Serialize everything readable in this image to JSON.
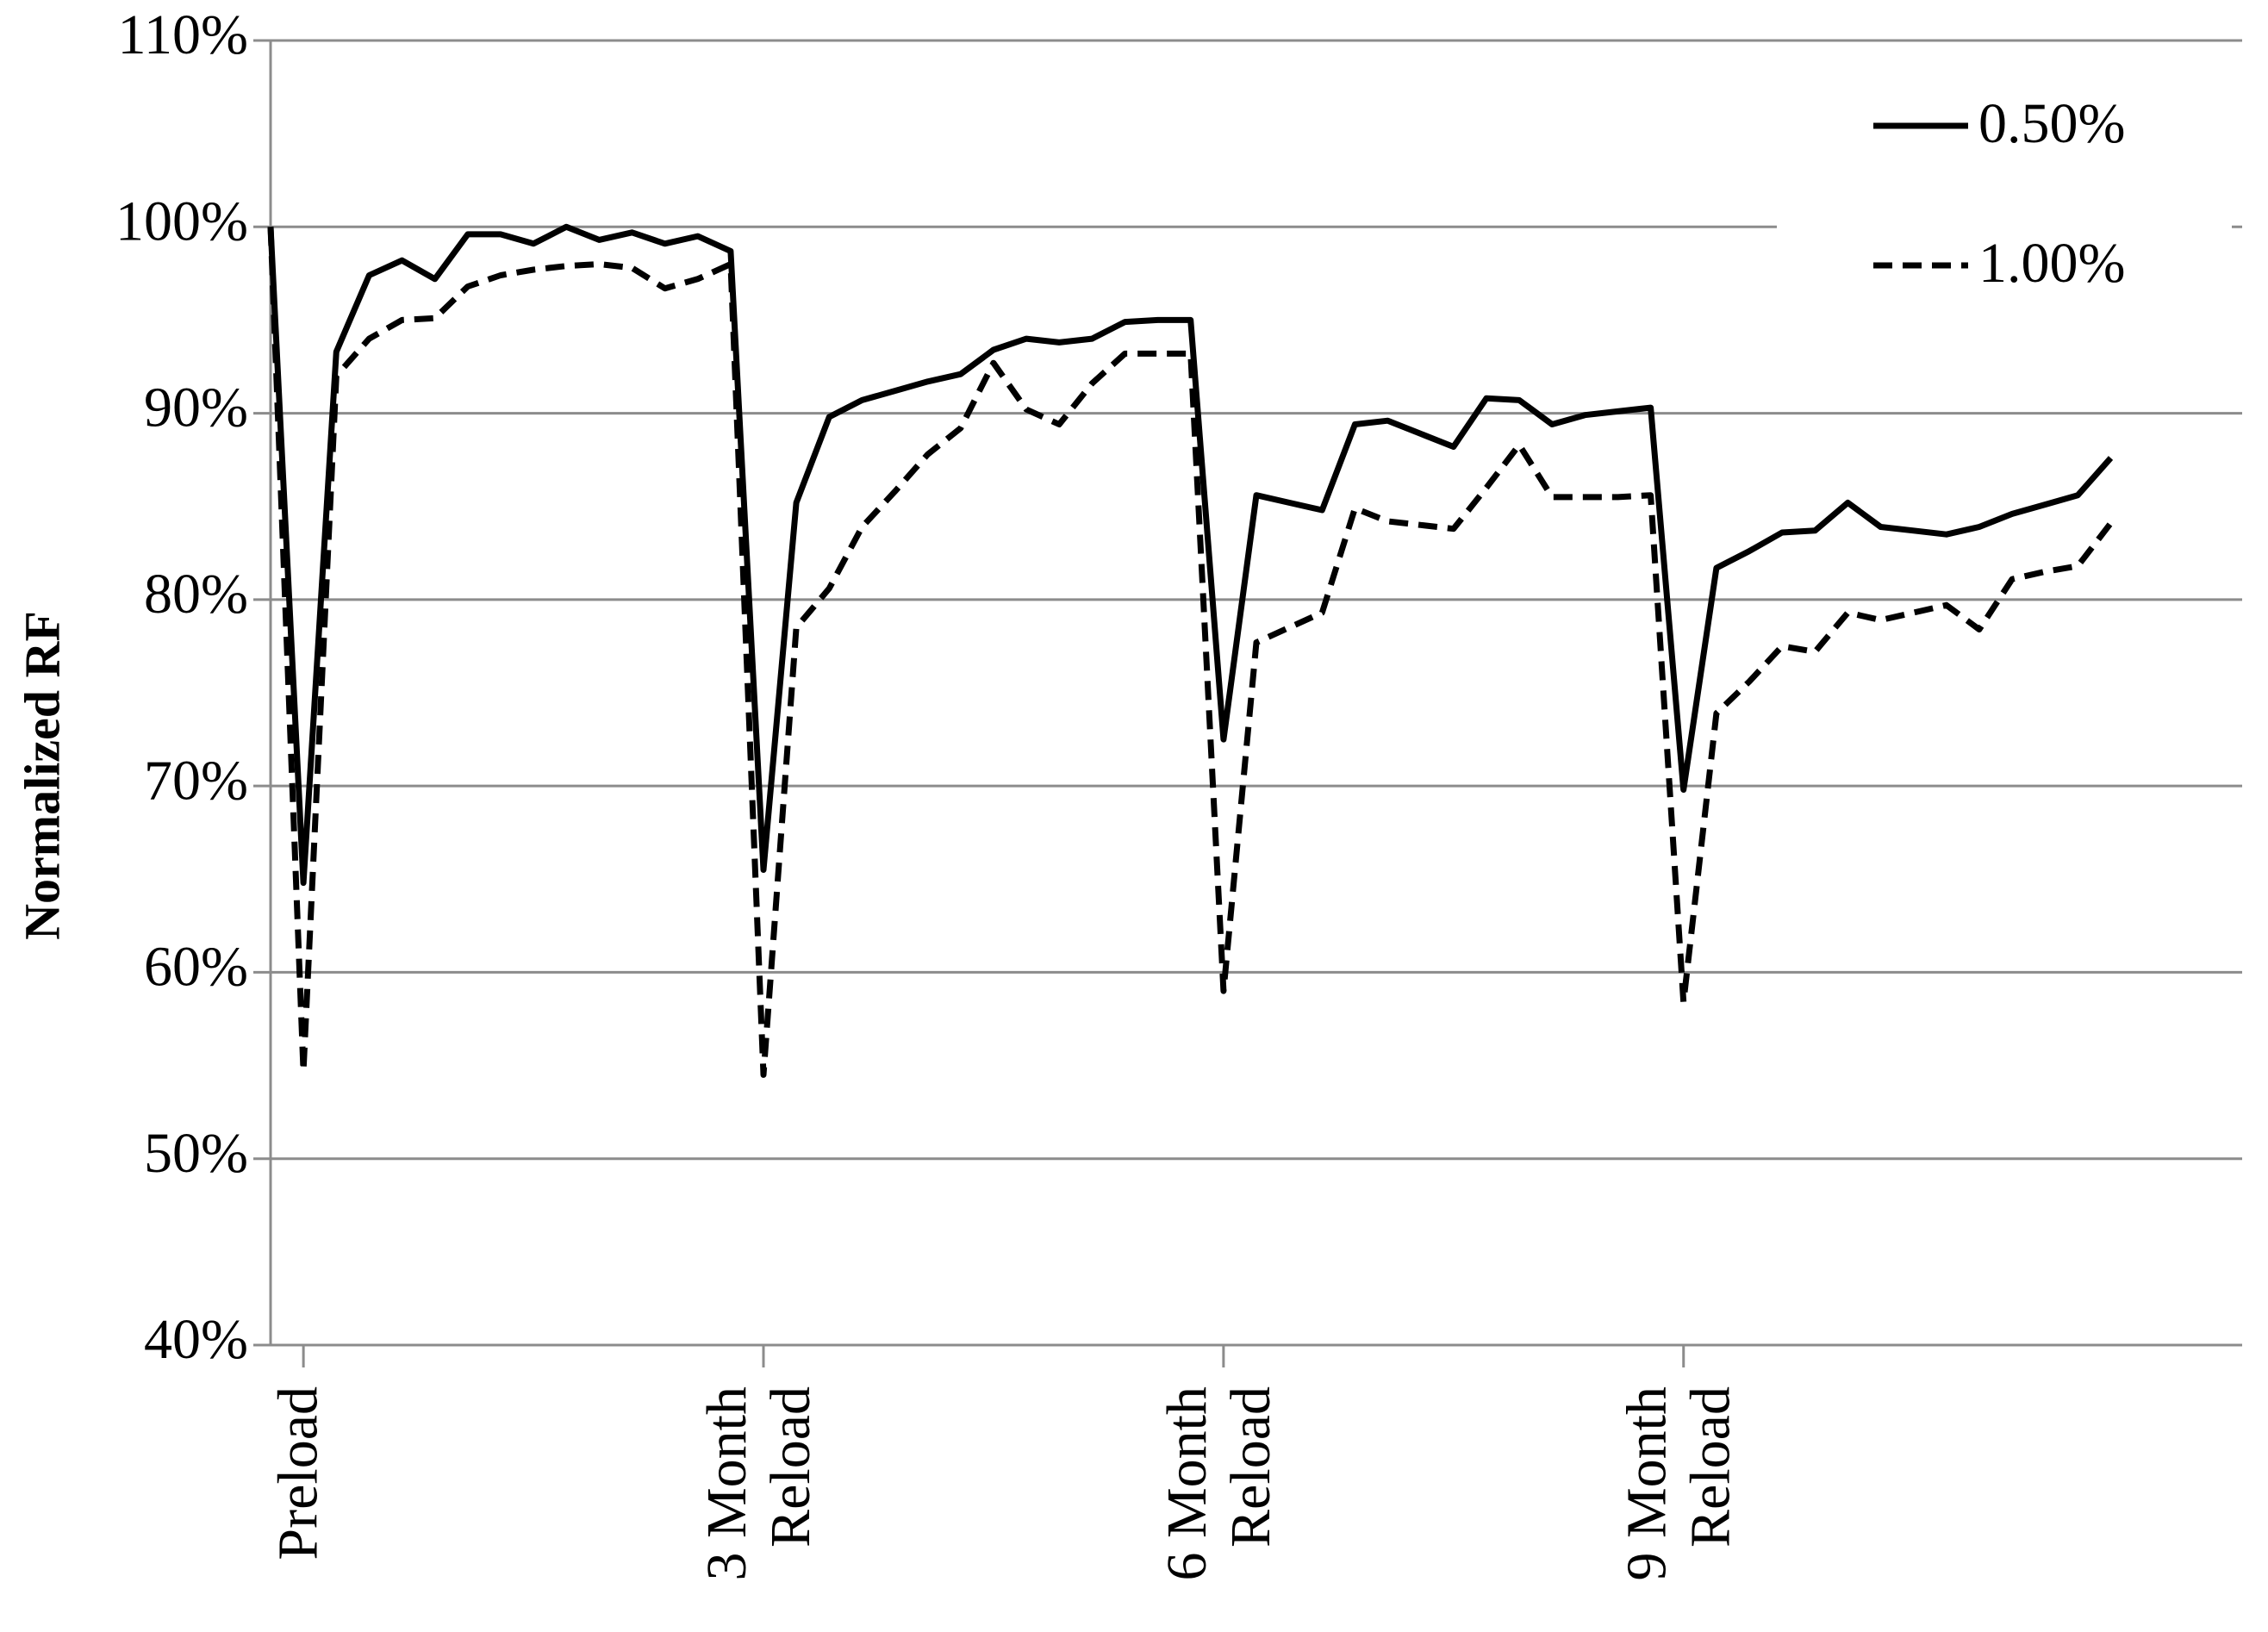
{
  "chart_data": {
    "type": "line",
    "y_label": "Normalized RF",
    "categories": [
      null,
      "Preload",
      null,
      null,
      null,
      null,
      null,
      null,
      null,
      null,
      null,
      null,
      null,
      null,
      null,
      "3 Month Reload",
      null,
      null,
      null,
      null,
      null,
      null,
      null,
      null,
      null,
      null,
      null,
      null,
      null,
      "6 Month Reload",
      null,
      null,
      null,
      null,
      null,
      null,
      null,
      null,
      null,
      null,
      null,
      null,
      null,
      "9 Month Reload",
      null,
      null,
      null,
      null,
      null,
      null,
      null,
      null,
      null,
      null,
      null,
      null,
      null,
      null,
      null,
      null,
      null
    ],
    "series": [
      {
        "name": "0.50%",
        "color": "#000000",
        "dash": false,
        "values": [
          100,
          64.8,
          93.3,
          97.4,
          98.2,
          97.2,
          99.6,
          99.6,
          99.1,
          100,
          99.3,
          99.7,
          99.1,
          99.5,
          98.7,
          65.5,
          85.2,
          89.8,
          90.7,
          91.2,
          91.7,
          92.1,
          93.4,
          94.0,
          93.8,
          94.0,
          94.9,
          95.0,
          95.0,
          72.5,
          85.6,
          85.2,
          84.8,
          89.4,
          89.6,
          88.9,
          88.2,
          90.8,
          90.7,
          89.4,
          89.9,
          90.1,
          90.3,
          69.8,
          81.7,
          82.6,
          83.6,
          83.7,
          85.2,
          83.9,
          83.7,
          83.5,
          83.9,
          84.6,
          85.1,
          85.6,
          87.6,
          null,
          null,
          null,
          null
        ]
      },
      {
        "name": "1.00%",
        "color": "#000000",
        "dash": true,
        "values": [
          100,
          54.7,
          92.0,
          94.0,
          95.0,
          95.1,
          96.8,
          97.4,
          97.7,
          97.9,
          98.0,
          97.8,
          96.7,
          97.2,
          98.0,
          54.5,
          78.5,
          80.6,
          83.9,
          85.8,
          87.8,
          89.2,
          92.7,
          90.2,
          89.4,
          91.6,
          93.2,
          93.2,
          93.2,
          59.0,
          77.7,
          78.5,
          79.3,
          84.9,
          84.2,
          84.0,
          83.8,
          86.0,
          88.3,
          85.5,
          85.5,
          85.5,
          85.6,
          58.4,
          73.9,
          75.6,
          77.5,
          77.2,
          79.3,
          78.9,
          79.3,
          79.7,
          78.4,
          81.1,
          81.5,
          81.8,
          84.1,
          null,
          null,
          null,
          null
        ]
      }
    ],
    "ylim": [
      40,
      110
    ],
    "yticks": [
      {
        "value": 40,
        "label": "40%"
      },
      {
        "value": 50,
        "label": "50%"
      },
      {
        "value": 60,
        "label": "60%"
      },
      {
        "value": 70,
        "label": "70%"
      },
      {
        "value": 80,
        "label": "80%"
      },
      {
        "value": 90,
        "label": "90%"
      },
      {
        "value": 100,
        "label": "100%"
      },
      {
        "value": 110,
        "label": "110%"
      }
    ],
    "grid": true,
    "legend": "upper right"
  }
}
